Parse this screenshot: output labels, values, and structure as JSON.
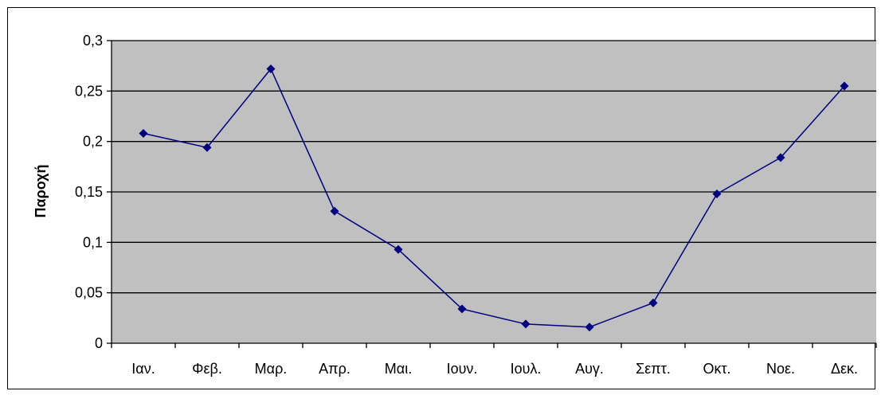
{
  "chart_data": {
    "type": "line",
    "title": "",
    "xlabel": "",
    "ylabel": "Παροχή",
    "categories": [
      "Ιαν.",
      "Φεβ.",
      "Μαρ.",
      "Απρ.",
      "Μαι.",
      "Ιουν.",
      "Ιουλ.",
      "Αυγ.",
      "Σεπτ.",
      "Οκτ.",
      "Νοε.",
      "Δεκ."
    ],
    "series": [
      {
        "values": [
          0.208,
          0.194,
          0.272,
          0.131,
          0.093,
          0.034,
          0.019,
          0.016,
          0.04,
          0.148,
          0.184,
          0.255
        ]
      }
    ],
    "ylim": [
      0,
      0.3
    ],
    "yticks": [
      0,
      0.05,
      0.1,
      0.15,
      0.2,
      0.25,
      0.3
    ],
    "ytick_labels": [
      "0",
      "0,05",
      "0,1",
      "0,15",
      "0,2",
      "0,25",
      "0,3"
    ],
    "grid": true,
    "legend": "none",
    "colors": {
      "plot_background": "#C0C0C0",
      "series_line": "#000080",
      "gridline": "#000000"
    },
    "marker": "diamond"
  }
}
